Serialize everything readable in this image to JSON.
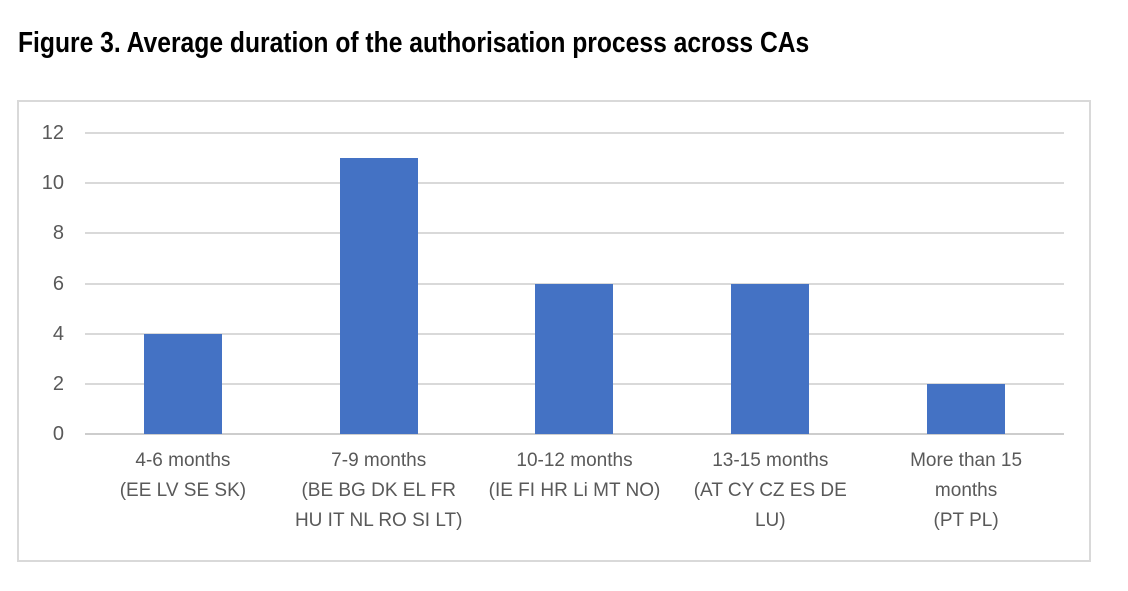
{
  "figure_title": "Figure 3. Average duration of the authorisation process across CAs",
  "chart_data": {
    "type": "bar",
    "title": "Figure 3. Average duration of the authorisation process across CAs",
    "categories": [
      "4-6 months\n(EE LV SE SK)",
      "7-9 months\n(BE BG DK EL FR\nHU IT NL RO SI LT)",
      "10-12 months\n(IE FI HR Li MT NO)",
      "13-15 months\n(AT CY CZ ES DE\nLU)",
      "More than 15\nmonths\n(PT PL)"
    ],
    "values": [
      4,
      11,
      6,
      6,
      2
    ],
    "xlabel": "",
    "ylabel": "",
    "ylim": [
      0,
      12
    ],
    "yticks": [
      0,
      2,
      4,
      6,
      8,
      10,
      12
    ],
    "grid": true,
    "legend": false,
    "bar_color": "#4472C4",
    "gridline_color": "#D9D9D9",
    "axis_line_color": "#CDCDCD",
    "tick_label_color": "#595959",
    "plot_border_color": "#D9D9D9",
    "background_color": "#FFFFFF"
  }
}
